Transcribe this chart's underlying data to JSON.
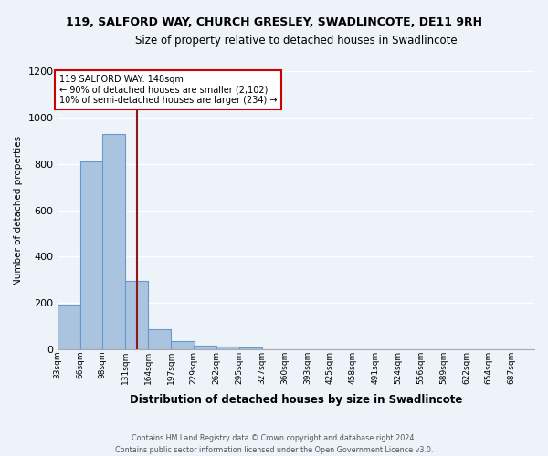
{
  "title": "119, SALFORD WAY, CHURCH GRESLEY, SWADLINCOTE, DE11 9RH",
  "subtitle": "Size of property relative to detached houses in Swadlincote",
  "xlabel": "Distribution of detached houses by size in Swadlincote",
  "ylabel": "Number of detached properties",
  "footer_line1": "Contains HM Land Registry data © Crown copyright and database right 2024.",
  "footer_line2": "Contains public sector information licensed under the Open Government Licence v3.0.",
  "bar_labels": [
    "33sqm",
    "66sqm",
    "98sqm",
    "131sqm",
    "164sqm",
    "197sqm",
    "229sqm",
    "262sqm",
    "295sqm",
    "327sqm",
    "360sqm",
    "393sqm",
    "425sqm",
    "458sqm",
    "491sqm",
    "524sqm",
    "556sqm",
    "589sqm",
    "622sqm",
    "654sqm",
    "687sqm"
  ],
  "bar_values": [
    195,
    810,
    930,
    295,
    88,
    35,
    18,
    12,
    10,
    0,
    0,
    0,
    0,
    0,
    0,
    0,
    0,
    0,
    0,
    0,
    0
  ],
  "bar_color": "#aac4e0",
  "bar_edge_color": "#6699cc",
  "bg_color": "#eef2f9",
  "grid_color": "#ffffff",
  "vline_color": "#8b1a1a",
  "annotation_title": "119 SALFORD WAY: 148sqm",
  "annotation_line1": "← 90% of detached houses are smaller (2,102)",
  "annotation_line2": "10% of semi-detached houses are larger (234) →",
  "annotation_box_color": "#ffffff",
  "annotation_box_edge": "#cc0000",
  "ylim": [
    0,
    1200
  ],
  "yticks": [
    0,
    200,
    400,
    600,
    800,
    1000,
    1200
  ],
  "bin_starts": [
    33,
    66,
    98,
    131,
    164,
    197,
    229,
    262,
    295,
    327,
    360,
    393,
    425,
    458,
    491,
    524,
    556,
    589,
    622,
    654,
    687
  ],
  "bin_width": 33,
  "vline_x": 148
}
